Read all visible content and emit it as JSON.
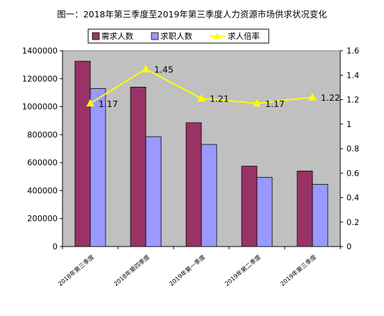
{
  "chart_data": {
    "type": "bar",
    "title": "图一：2018年第三季度至2019年第三季度人力资源市场供求状况变化",
    "xlabel": "",
    "ylabel": "",
    "categories": [
      "2018年第三季度",
      "2018年第四季度",
      "2019年第一季度",
      "2019年第二季度",
      "2019年第三季度"
    ],
    "series": [
      {
        "name": "需求人数",
        "type": "bar",
        "axis": "left",
        "color": "#993366",
        "values": [
          1325000,
          1140000,
          885000,
          575000,
          540000
        ]
      },
      {
        "name": "求职人数",
        "type": "bar",
        "axis": "left",
        "color": "#9999FF",
        "values": [
          1130000,
          785000,
          730000,
          495000,
          445000
        ]
      },
      {
        "name": "求人倍率",
        "type": "line",
        "axis": "right",
        "color": "#FFFF00",
        "values": [
          1.17,
          1.45,
          1.21,
          1.17,
          1.22
        ]
      }
    ],
    "data_labels": [
      "1.17",
      "1.45",
      "1.21",
      "1.17",
      "1.22"
    ],
    "ylim": [
      0,
      1400000
    ],
    "y_ticks": [
      "0",
      "200000",
      "400000",
      "600000",
      "800000",
      "1000000",
      "1200000",
      "1400000"
    ],
    "ylim_right": [
      0,
      1.6
    ],
    "y2_ticks": [
      "0",
      "0.2",
      "0.4",
      "0.6",
      "0.8",
      "1",
      "1.2",
      "1.4",
      "1.6"
    ],
    "grid": false,
    "legend_position": "top",
    "plot_background": "#C0C0C0"
  }
}
